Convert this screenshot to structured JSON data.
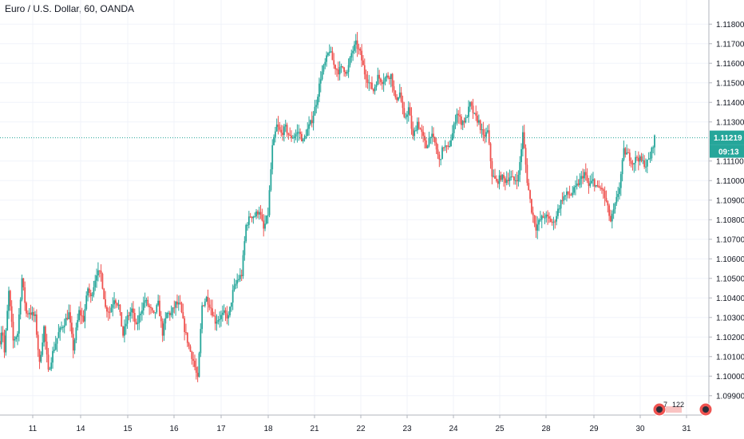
{
  "chart_data": {
    "type": "candlestick",
    "title": "Euro / U.S. Dollar, 60, OANDA",
    "x_ticks": [
      "11",
      "14",
      "15",
      "16",
      "17",
      "18",
      "21",
      "22",
      "23",
      "24",
      "25",
      "28",
      "29",
      "30",
      "31"
    ],
    "y_ticks": [
      "1.11800",
      "1.11700",
      "1.11600",
      "1.11500",
      "1.11400",
      "1.11300",
      "1.11100",
      "1.11000",
      "1.10900",
      "1.10800",
      "1.10700",
      "1.10600",
      "1.10500",
      "1.10400",
      "1.10300",
      "1.10200",
      "1.10100",
      "1.10000",
      "1.09900"
    ],
    "ylim": [
      1.0985,
      1.1185
    ],
    "last_price": "1.11219",
    "countdown": "09:13",
    "up_color": "#26a69a",
    "down_color": "#ef5350",
    "series_path": [
      [
        0,
        1.1018
      ],
      [
        1.5,
        1.1026
      ],
      [
        3,
        1.1012
      ],
      [
        6,
        1.1043
      ],
      [
        9,
        1.1018
      ],
      [
        12,
        1.1022
      ],
      [
        15,
        1.105
      ],
      [
        18,
        1.1032
      ],
      [
        20,
        1.1033
      ],
      [
        24,
        1.103
      ],
      [
        27,
        1.1006
      ],
      [
        30,
        1.1025
      ],
      [
        33,
        1.1002
      ],
      [
        36,
        1.1012
      ],
      [
        40,
        1.1022
      ],
      [
        43,
        1.1026
      ],
      [
        47,
        1.1032
      ],
      [
        50,
        1.1014
      ],
      [
        54,
        1.1033
      ],
      [
        57,
        1.1029
      ],
      [
        60,
        1.1045
      ],
      [
        62,
        1.104
      ],
      [
        66,
        1.1053
      ],
      [
        69,
        1.1052
      ],
      [
        72,
        1.1035
      ],
      [
        75,
        1.1033
      ],
      [
        78,
        1.104
      ],
      [
        81,
        1.1036
      ],
      [
        84,
        1.1021
      ],
      [
        87,
        1.103
      ],
      [
        90,
        1.1034
      ],
      [
        93,
        1.1025
      ],
      [
        96,
        1.1033
      ],
      [
        99,
        1.1039
      ],
      [
        102,
        1.1035
      ],
      [
        105,
        1.1031
      ],
      [
        108,
        1.1037
      ],
      [
        111,
        1.1022
      ],
      [
        114,
        1.1032
      ],
      [
        117,
        1.1032
      ],
      [
        120,
        1.1037
      ],
      [
        123,
        1.1036
      ],
      [
        126,
        1.1024
      ],
      [
        129,
        1.1015
      ],
      [
        132,
        1.1008
      ],
      [
        135,
        1.0998
      ],
      [
        138,
        1.1036
      ],
      [
        141,
        1.104
      ],
      [
        144,
        1.1035
      ],
      [
        147,
        1.1028
      ],
      [
        150,
        1.103
      ],
      [
        153,
        1.1032
      ],
      [
        156,
        1.103
      ],
      [
        159,
        1.1043
      ],
      [
        162,
        1.1049
      ],
      [
        165,
        1.1052
      ],
      [
        168,
        1.1077
      ],
      [
        171,
        1.1082
      ],
      [
        174,
        1.1082
      ],
      [
        177,
        1.1085
      ],
      [
        180,
        1.1075
      ],
      [
        183,
        1.1083
      ],
      [
        186,
        1.1117
      ],
      [
        189,
        1.1128
      ],
      [
        192,
        1.1124
      ],
      [
        195,
        1.1127
      ],
      [
        198,
        1.1122
      ],
      [
        201,
        1.1123
      ],
      [
        204,
        1.1125
      ],
      [
        207,
        1.112
      ],
      [
        210,
        1.1126
      ],
      [
        213,
        1.1131
      ],
      [
        216,
        1.114
      ],
      [
        219,
        1.1153
      ],
      [
        222,
        1.116
      ],
      [
        225,
        1.1167
      ],
      [
        228,
        1.1159
      ],
      [
        231,
        1.1156
      ],
      [
        234,
        1.1158
      ],
      [
        237,
        1.1155
      ],
      [
        240,
        1.1165
      ],
      [
        243,
        1.117
      ],
      [
        246,
        1.1165
      ],
      [
        249,
        1.1155
      ],
      [
        252,
        1.115
      ],
      [
        255,
        1.1146
      ],
      [
        258,
        1.1153
      ],
      [
        261,
        1.1151
      ],
      [
        264,
        1.1153
      ],
      [
        267,
        1.1154
      ],
      [
        270,
        1.1141
      ],
      [
        273,
        1.1145
      ],
      [
        276,
        1.1131
      ],
      [
        279,
        1.1137
      ],
      [
        282,
        1.1122
      ],
      [
        285,
        1.113
      ],
      [
        288,
        1.1124
      ],
      [
        291,
        1.1117
      ],
      [
        294,
        1.1124
      ],
      [
        297,
        1.1119
      ],
      [
        300,
        1.111
      ],
      [
        303,
        1.1118
      ],
      [
        306,
        1.1116
      ],
      [
        309,
        1.1124
      ],
      [
        312,
        1.1135
      ],
      [
        315,
        1.113
      ],
      [
        318,
        1.1131
      ],
      [
        321,
        1.1139
      ],
      [
        324,
        1.1133
      ],
      [
        327,
        1.113
      ],
      [
        330,
        1.1122
      ],
      [
        333,
        1.1125
      ],
      [
        336,
        1.1103
      ],
      [
        339,
        1.1099
      ],
      [
        342,
        1.1102
      ],
      [
        345,
        1.11
      ],
      [
        348,
        1.1102
      ],
      [
        351,
        1.11
      ],
      [
        354,
        1.1102
      ],
      [
        357,
        1.1124
      ],
      [
        360,
        1.11
      ],
      [
        363,
        1.1085
      ],
      [
        366,
        1.1076
      ],
      [
        369,
        1.108
      ],
      [
        372,
        1.1082
      ],
      [
        375,
        1.108
      ],
      [
        378,
        1.1078
      ],
      [
        381,
        1.1085
      ],
      [
        384,
        1.1091
      ],
      [
        387,
        1.1093
      ],
      [
        390,
        1.1093
      ],
      [
        393,
        1.1096
      ],
      [
        396,
        1.11
      ],
      [
        399,
        1.1104
      ],
      [
        402,
        1.1097
      ],
      [
        405,
        1.11
      ],
      [
        408,
        1.1096
      ],
      [
        411,
        1.1096
      ],
      [
        414,
        1.1089
      ],
      [
        417,
        1.1079
      ],
      [
        420,
        1.1087
      ],
      [
        423,
        1.1097
      ],
      [
        426,
        1.1115
      ],
      [
        429,
        1.1113
      ],
      [
        432,
        1.1109
      ],
      [
        435,
        1.1112
      ],
      [
        438,
        1.111
      ],
      [
        441,
        1.1108
      ],
      [
        444,
        1.1112
      ],
      [
        447,
        1.1122
      ]
    ]
  }
}
